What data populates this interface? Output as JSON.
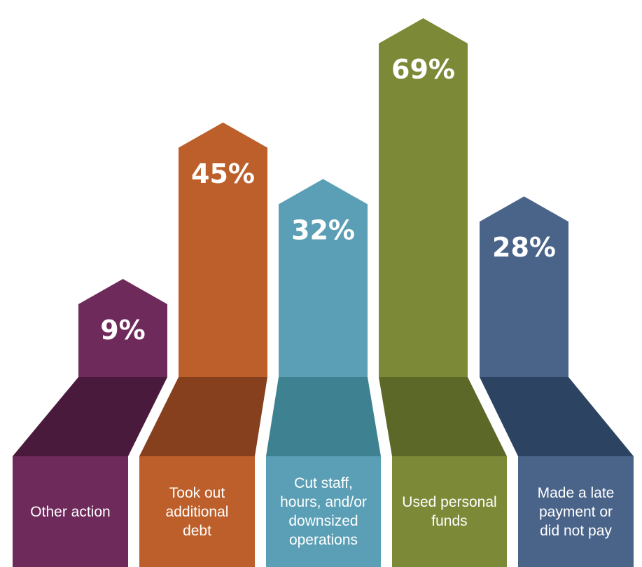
{
  "chart_data": {
    "type": "bar",
    "categories": [
      "Other action",
      "Took out additional debt",
      "Cut staff, hours, and/or downsized operations",
      "Used personal funds",
      "Made a late payment or did not pay"
    ],
    "label_lines": [
      [
        "Other action"
      ],
      [
        "Took out",
        "additional",
        "debt"
      ],
      [
        "Cut staff,",
        "hours, and/or",
        "downsized",
        "operations"
      ],
      [
        "Used personal",
        "funds"
      ],
      [
        "Made a late",
        "payment or",
        "did not pay"
      ]
    ],
    "values": [
      9,
      45,
      32,
      69,
      28
    ],
    "value_labels": [
      "9%",
      "45%",
      "32%",
      "69%",
      "28%"
    ],
    "ylim": [
      0,
      69
    ],
    "grid": false,
    "legend": "none",
    "colors": [
      {
        "main": "#6e2a5b",
        "dark": "#4a1a3c"
      },
      {
        "main": "#bd5f2a",
        "dark": "#86401d"
      },
      {
        "main": "#5a9fb5",
        "dark": "#3e8191"
      },
      {
        "main": "#7c8a38",
        "dark": "#5c6827"
      },
      {
        "main": "#4a6489",
        "dark": "#2c4462"
      }
    ]
  }
}
